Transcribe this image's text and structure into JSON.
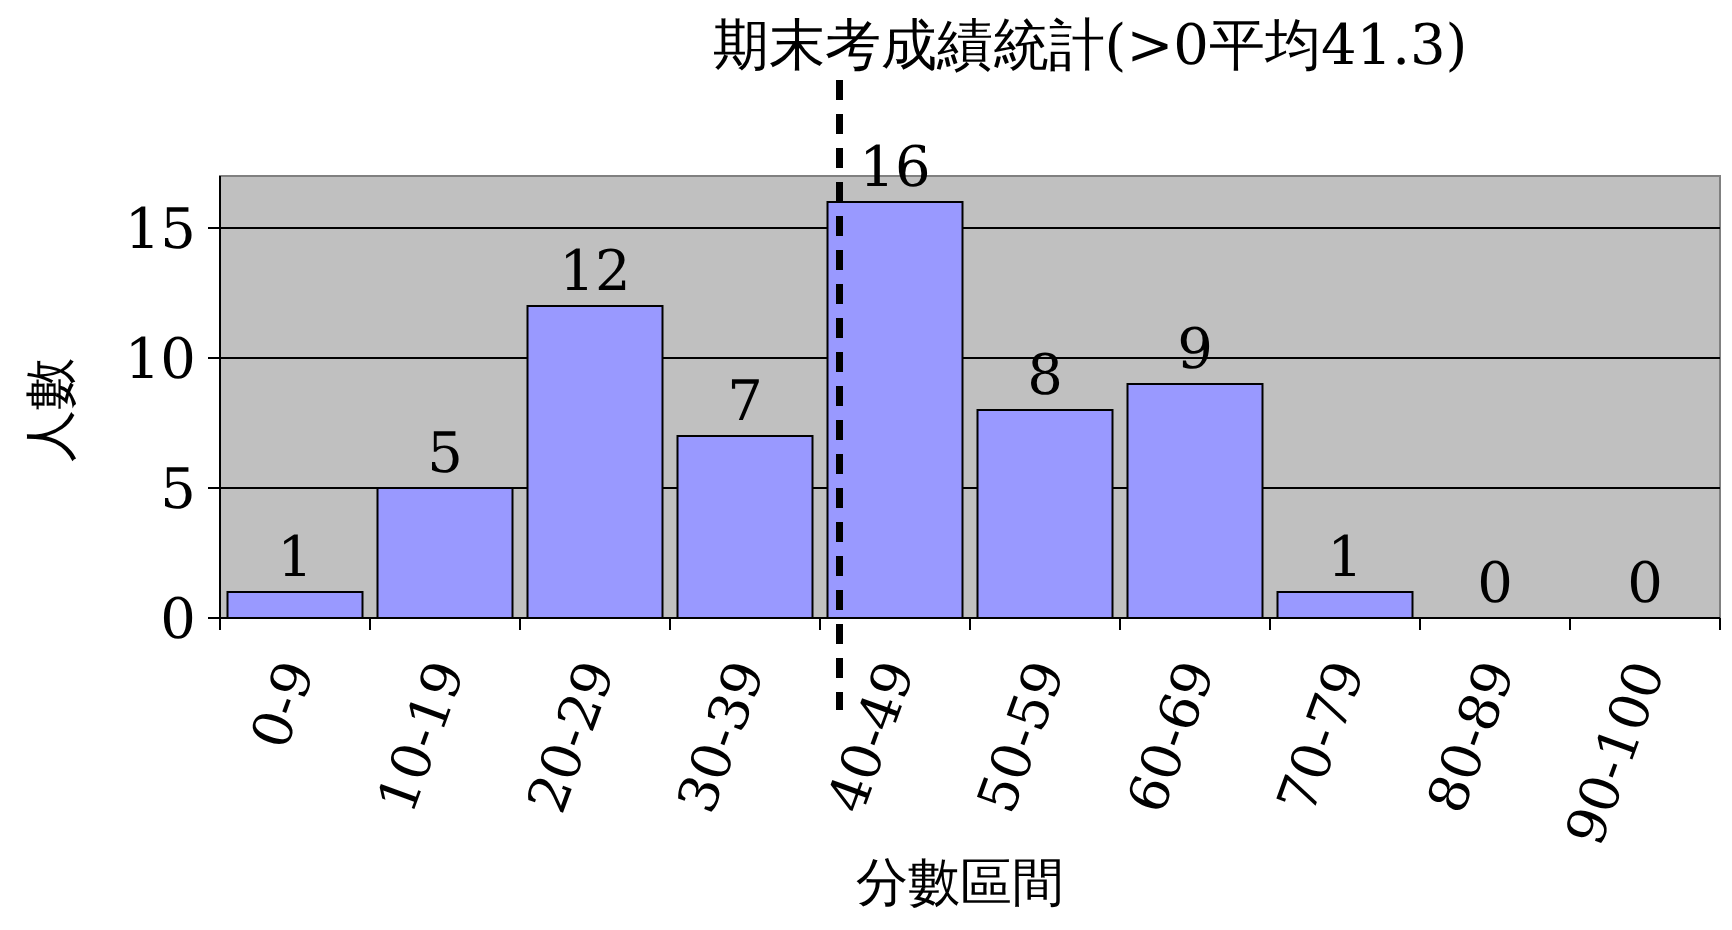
{
  "chart_data": {
    "type": "bar",
    "title": "期末考成績統計(>0平均41.3)",
    "xlabel": "分數區間",
    "ylabel": "人數",
    "categories": [
      "0-9",
      "10-19",
      "20-29",
      "30-39",
      "40-49",
      "50-59",
      "60-69",
      "70-79",
      "80-89",
      "90-100"
    ],
    "values": [
      1,
      5,
      12,
      7,
      16,
      8,
      9,
      1,
      0,
      0
    ],
    "color": "#9999ff",
    "ylim": [
      0,
      17
    ],
    "yticks": [
      0,
      5,
      10,
      15
    ],
    "grid": "y",
    "data_labels": true
  }
}
